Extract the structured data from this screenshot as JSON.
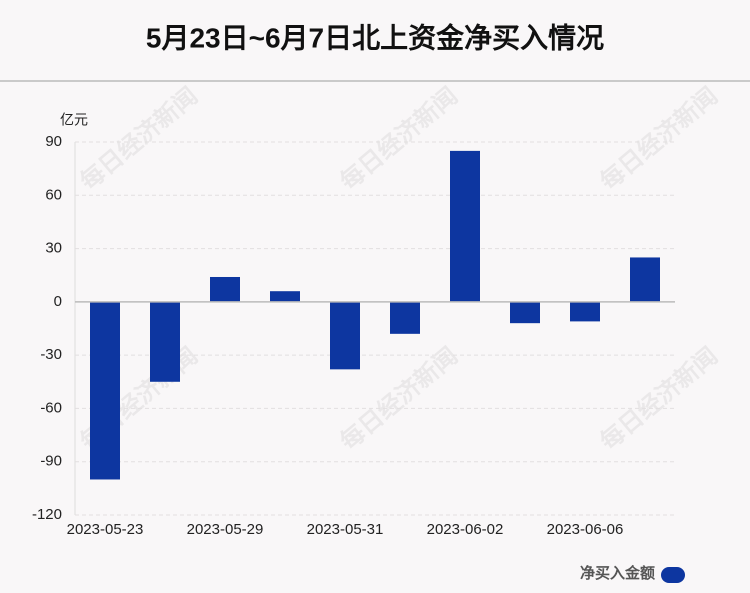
{
  "chart_data": {
    "type": "bar",
    "title": "5月23日~6月7日北上资金净买入情况",
    "y_unit": "亿元",
    "watermark": "每日经济新闻",
    "categories": [
      "2023-05-23",
      null,
      "2023-05-29",
      null,
      "2023-05-31",
      null,
      "2023-06-02",
      null,
      "2023-06-06",
      null
    ],
    "series": [
      {
        "name": "净买入金额",
        "color": "#0d36a0",
        "values": [
          -100,
          -45,
          14,
          6,
          -38,
          -18,
          85,
          -12,
          -11,
          25
        ]
      }
    ],
    "ylim": [
      -120,
      90
    ],
    "yticks": [
      -120,
      -90,
      -60,
      -30,
      0,
      30,
      60,
      90
    ],
    "grid": true,
    "legend": "bottom-right"
  }
}
